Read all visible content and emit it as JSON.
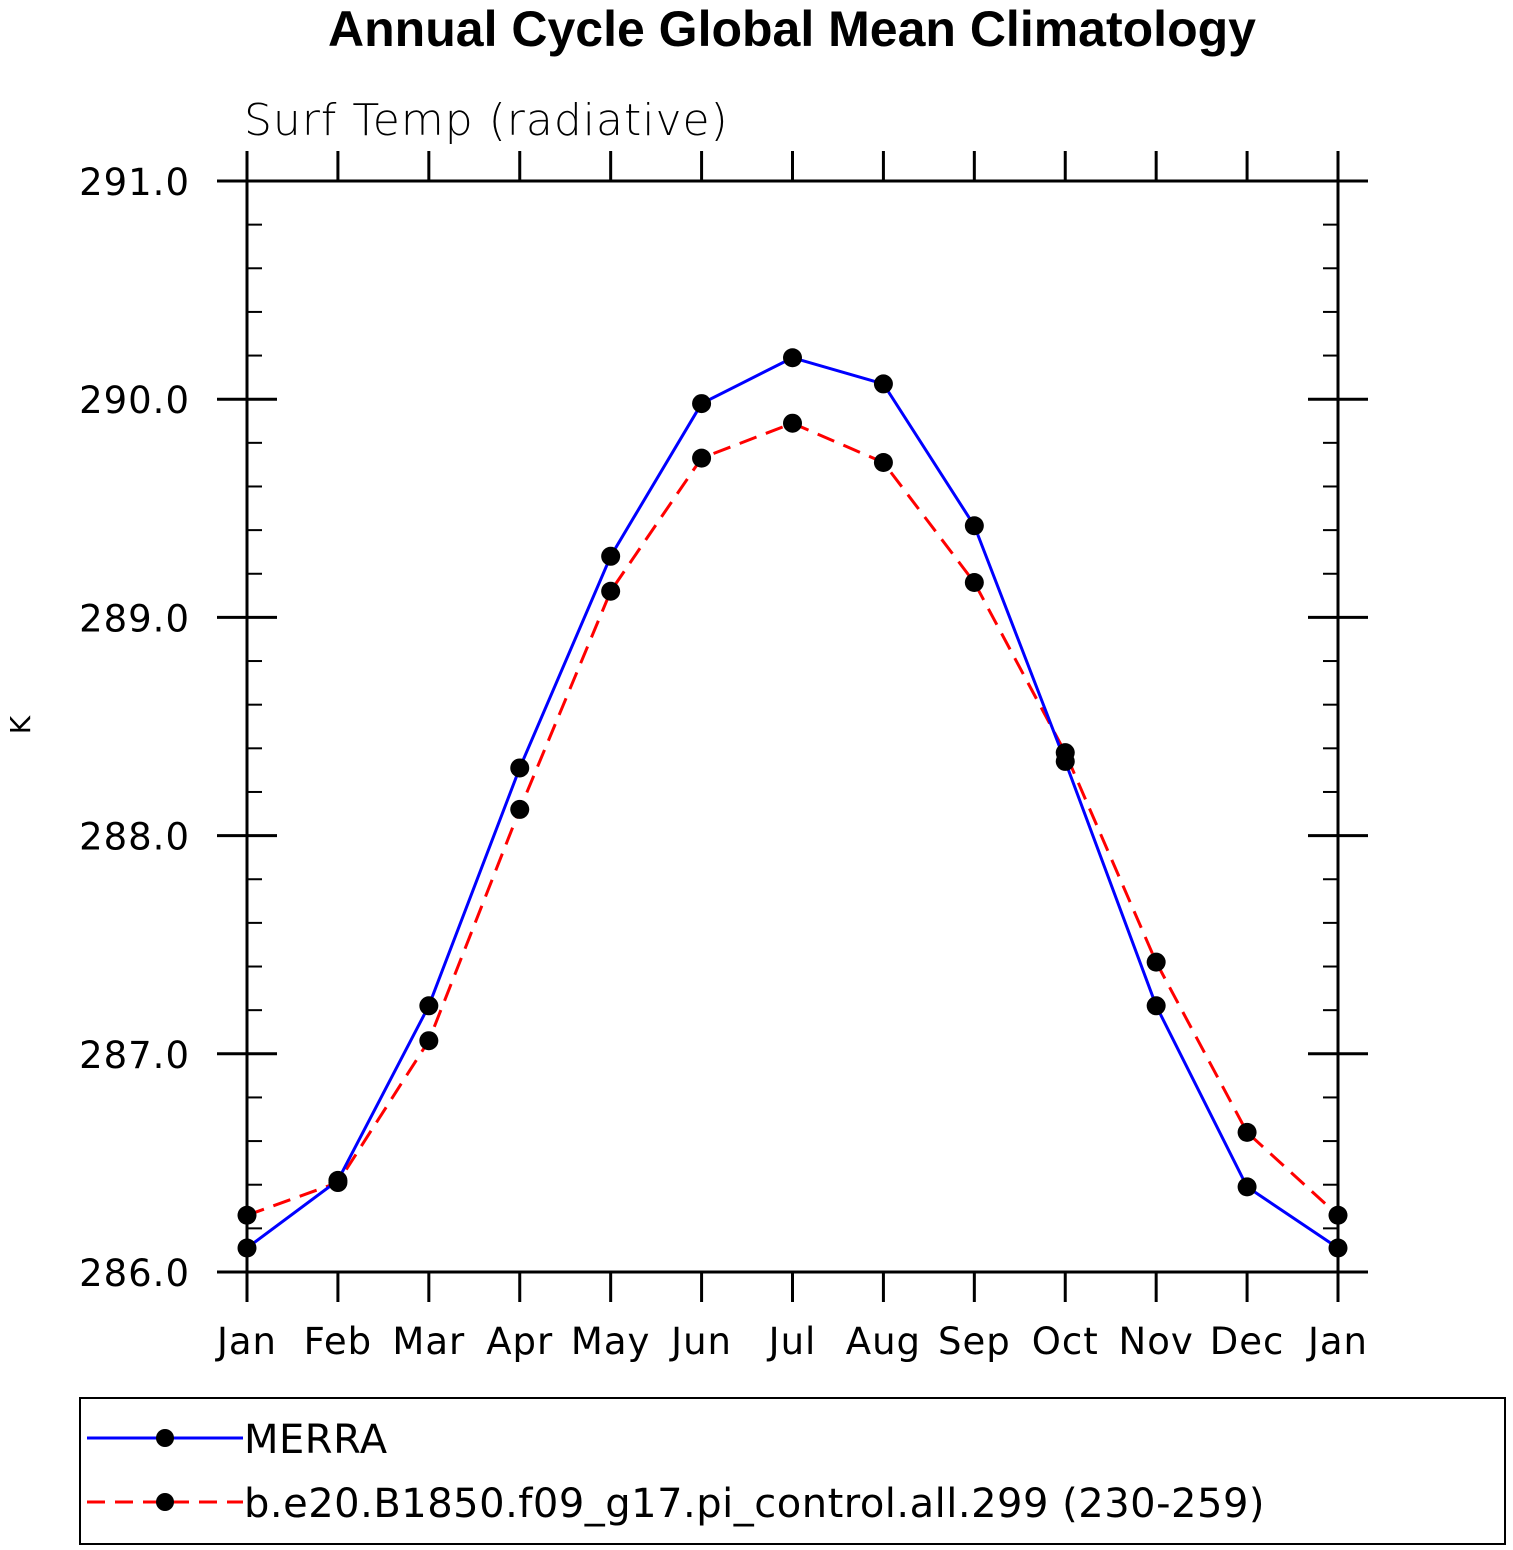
{
  "chart_data": {
    "type": "line",
    "title": "Annual Cycle Global Mean Climatology",
    "subtitle": "Surf Temp (radiative)",
    "xlabel": "",
    "ylabel": "K",
    "categories": [
      "Jan",
      "Feb",
      "Mar",
      "Apr",
      "May",
      "Jun",
      "Jul",
      "Aug",
      "Sep",
      "Oct",
      "Nov",
      "Dec",
      "Jan"
    ],
    "ylim": [
      286.0,
      291.0
    ],
    "y_ticks": [
      "286.0",
      "287.0",
      "288.0",
      "289.0",
      "290.0",
      "291.0"
    ],
    "grid": false,
    "legend_position": "bottom",
    "series": [
      {
        "name": "MERRA",
        "color": "#0000ff",
        "line_style": "solid",
        "marker": "filled-circle",
        "values": [
          286.11,
          286.42,
          287.22,
          288.31,
          289.28,
          289.98,
          290.19,
          290.07,
          289.42,
          288.34,
          287.22,
          286.39,
          286.11
        ]
      },
      {
        "name": "b.e20.B1850.f09_g17.pi_control.all.299 (230-259)",
        "color": "#ff0000",
        "line_style": "dashed",
        "marker": "filled-circle",
        "values": [
          286.26,
          286.41,
          287.06,
          288.12,
          289.12,
          289.73,
          289.89,
          289.71,
          289.16,
          288.38,
          287.42,
          286.64,
          286.26
        ]
      }
    ]
  }
}
